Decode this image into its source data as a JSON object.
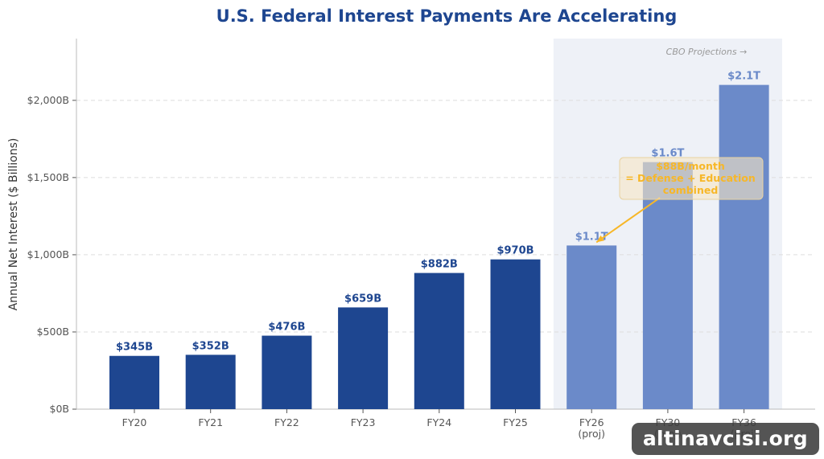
{
  "chart_data": {
    "type": "bar",
    "title": "U.S. Federal Interest Payments Are Accelerating",
    "ylabel": "Annual Net Interest ($ Billions)",
    "xlabel": "",
    "ylim": [
      0,
      2400
    ],
    "yticks": [
      0,
      500,
      1000,
      1500,
      2000
    ],
    "ytick_labels": [
      "$0B",
      "$500B",
      "$1,000B",
      "$1,500B",
      "$2,000B"
    ],
    "grid": "horizontal dashed",
    "bars": [
      {
        "category": "FY20",
        "sublabel": "",
        "value": 345,
        "label": "$345B",
        "projected": false
      },
      {
        "category": "FY21",
        "sublabel": "",
        "value": 352,
        "label": "$352B",
        "projected": false
      },
      {
        "category": "FY22",
        "sublabel": "",
        "value": 476,
        "label": "$476B",
        "projected": false
      },
      {
        "category": "FY23",
        "sublabel": "",
        "value": 659,
        "label": "$659B",
        "projected": false
      },
      {
        "category": "FY24",
        "sublabel": "",
        "value": 882,
        "label": "$882B",
        "projected": false
      },
      {
        "category": "FY25",
        "sublabel": "",
        "value": 970,
        "label": "$970B",
        "projected": false
      },
      {
        "category": "FY26",
        "sublabel": "(proj)",
        "value": 1060,
        "label": "$1.1T",
        "projected": true
      },
      {
        "category": "FY30",
        "sublabel": "(proj)",
        "value": 1600,
        "label": "$1.6T",
        "projected": true
      },
      {
        "category": "FY36",
        "sublabel": "(proj)",
        "value": 2100,
        "label": "$2.1T",
        "projected": true
      }
    ],
    "projection_region_label": "CBO Projections →",
    "annotation": {
      "lines": [
        "$88B/month",
        "= Defense + Education",
        "combined"
      ],
      "points_to": "FY26"
    },
    "colors": {
      "actual": "#1e4690",
      "projected": "#6b8ac9",
      "title": "#1e4690",
      "projection_region": "#eef1f7",
      "annotation_text": "#f7b728",
      "annotation_box": "#f6e6c4",
      "grid": "#dddddd"
    }
  },
  "watermark": "altinavcisi.org"
}
